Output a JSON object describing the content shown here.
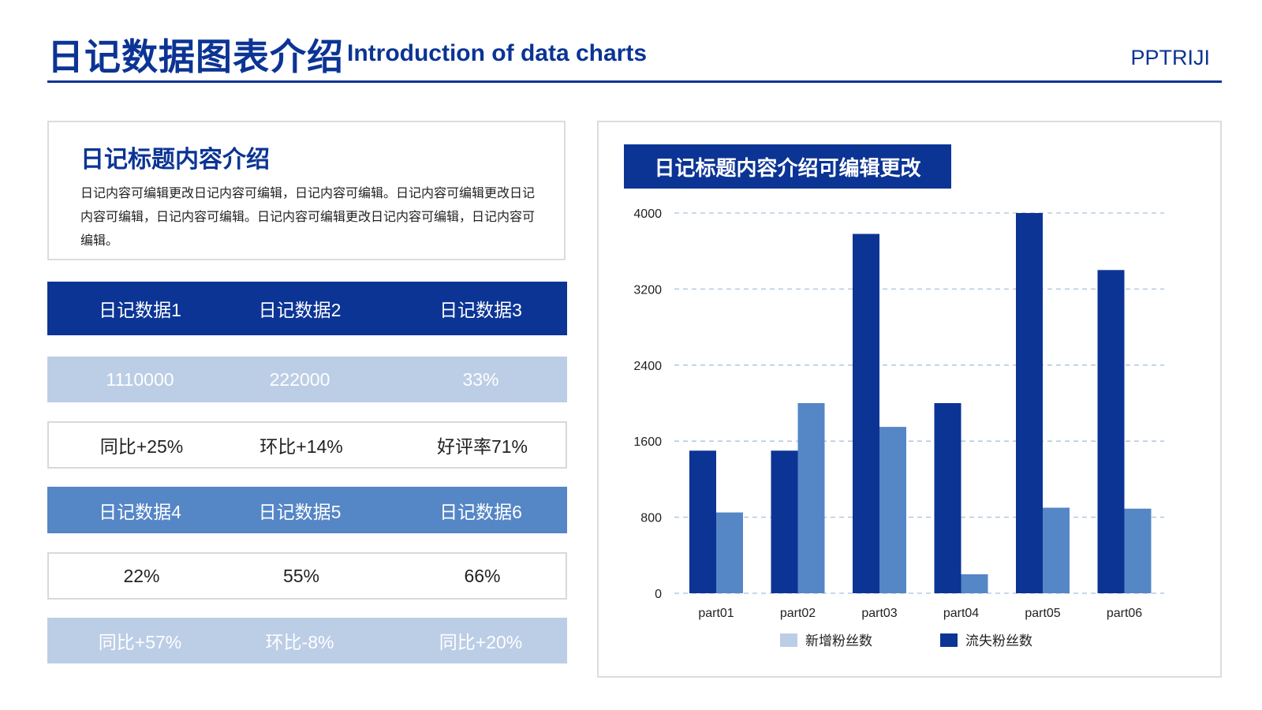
{
  "header": {
    "title_cn": "日记数据图表介绍",
    "title_en": "Introduction of data charts",
    "brand": "PPTRIJI",
    "accent_color": "#0b3494"
  },
  "intro": {
    "title": "日记标题内容介绍",
    "body": "日记内容可编辑更改日记内容可编辑，日记内容可编辑。日记内容可编辑更改日记内容可编辑，日记内容可编辑。日记内容可编辑更改日记内容可编辑，日记内容可编辑。"
  },
  "table": {
    "row1": [
      "日记数据1",
      "日记数据2",
      "日记数据3"
    ],
    "row2": [
      "1110000",
      "222000",
      "33%"
    ],
    "row3": [
      "同比+25%",
      "环比+14%",
      "好评率71%"
    ],
    "row4": [
      "日记数据4",
      "日记数据5",
      "日记数据6"
    ],
    "row5": [
      "22%",
      "55%",
      "66%"
    ],
    "row6": [
      "同比+57%",
      "环比-8%",
      "同比+20%"
    ]
  },
  "chart_data": {
    "type": "bar",
    "title": "日记标题内容介绍可编辑更改",
    "categories": [
      "part01",
      "part02",
      "part03",
      "part04",
      "part05",
      "part06"
    ],
    "series": [
      {
        "name": "流失粉丝数",
        "color": "#0b3494",
        "values": [
          1500,
          1500,
          3780,
          2000,
          4000,
          3400
        ]
      },
      {
        "name": "新增粉丝数",
        "color": "#5586c6",
        "values": [
          850,
          2000,
          1750,
          200,
          900,
          890
        ]
      }
    ],
    "legend": [
      {
        "name": "新增粉丝数",
        "color": "#bccde6"
      },
      {
        "name": "流失粉丝数",
        "color": "#0b3494"
      }
    ],
    "yticks": [
      0,
      800,
      1600,
      2400,
      3200,
      4000
    ],
    "ylim": [
      0,
      4000
    ],
    "grid": true,
    "legend_position": "bottom",
    "xlabel": "",
    "ylabel": ""
  }
}
